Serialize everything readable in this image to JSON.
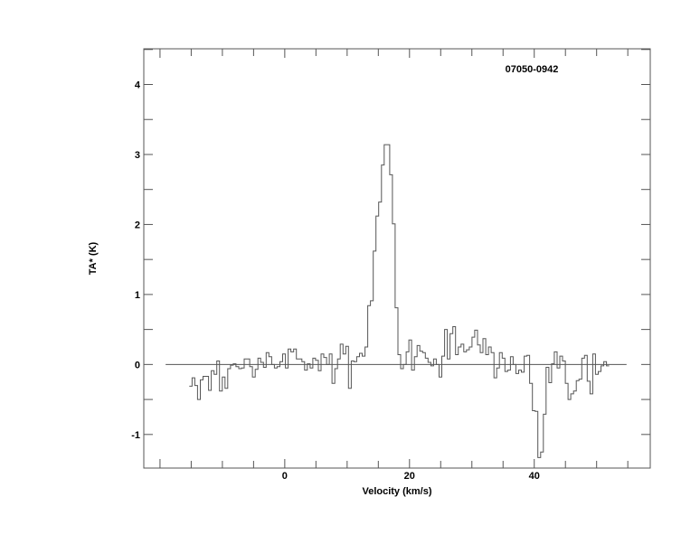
{
  "chart_data": {
    "type": "line",
    "style": "histogram-step",
    "title": "07050-0942",
    "xlabel": "Velocity (km/s)",
    "ylabel": "TA* (K)",
    "xlim": [
      -22.6,
      58.6
    ],
    "ylim": [
      -1.48,
      4.51
    ],
    "x_ticks": [
      0,
      20,
      40
    ],
    "x_minor_step": 5,
    "y_ticks": [
      -1,
      0,
      1,
      2,
      3,
      4
    ],
    "y_minor_step": 0.5,
    "grid": false,
    "baseline": {
      "value": 0,
      "x_range": [
        -19.1,
        54.8
      ]
    },
    "velocity_start_kms": -15.3,
    "channel_width_kms": 0.44,
    "values": [
      -0.31,
      -0.19,
      -0.3,
      -0.5,
      -0.22,
      -0.17,
      -0.17,
      -0.37,
      -0.09,
      -0.14,
      0.05,
      -0.38,
      -0.18,
      -0.34,
      -0.06,
      -0.01,
      0.01,
      -0.03,
      -0.06,
      -0.05,
      0.08,
      0.08,
      -0.03,
      -0.18,
      -0.07,
      0.09,
      0.03,
      -0.04,
      0.17,
      0.11,
      0.0,
      -0.05,
      -0.03,
      0.04,
      0.15,
      -0.05,
      0.22,
      0.18,
      0.22,
      0.08,
      0.08,
      0.04,
      -0.08,
      0.01,
      -0.05,
      0.09,
      0.06,
      -0.09,
      0.15,
      0.1,
      0.0,
      0.15,
      -0.27,
      -0.06,
      0.08,
      0.29,
      0.15,
      0.26,
      -0.34,
      0.05,
      0.04,
      0.11,
      0.16,
      0.12,
      0.25,
      0.84,
      0.91,
      1.62,
      2.12,
      2.32,
      2.85,
      3.14,
      3.14,
      2.71,
      2.01,
      0.81,
      0.14,
      -0.06,
      0.0,
      0.18,
      0.35,
      -0.08,
      0.11,
      0.27,
      0.19,
      0.17,
      0.09,
      0.03,
      -0.02,
      0.08,
      0.0,
      -0.18,
      0.12,
      0.5,
      0.08,
      0.44,
      0.54,
      0.14,
      0.25,
      0.29,
      0.18,
      0.21,
      0.25,
      0.39,
      0.49,
      0.28,
      0.17,
      0.37,
      0.14,
      0.25,
      0.17,
      -0.19,
      -0.05,
      0.17,
      0.09,
      -0.1,
      -0.08,
      0.11,
      0.0,
      -0.13,
      -0.08,
      -0.11,
      0.12,
      0.13,
      -0.27,
      -0.66,
      -0.67,
      -1.33,
      -1.25,
      -0.71,
      -0.04,
      -0.26,
      0.01,
      0.18,
      -0.05,
      0.12,
      0.05,
      -0.27,
      -0.5,
      -0.42,
      -0.38,
      -0.23,
      -0.21,
      0.09,
      0.13,
      -0.24,
      -0.42,
      0.15,
      -0.14,
      -0.1,
      -0.02,
      0.04,
      -0.02
    ],
    "colors": {
      "line": "#555555",
      "text": "#000000",
      "background": "#ffffff"
    }
  }
}
